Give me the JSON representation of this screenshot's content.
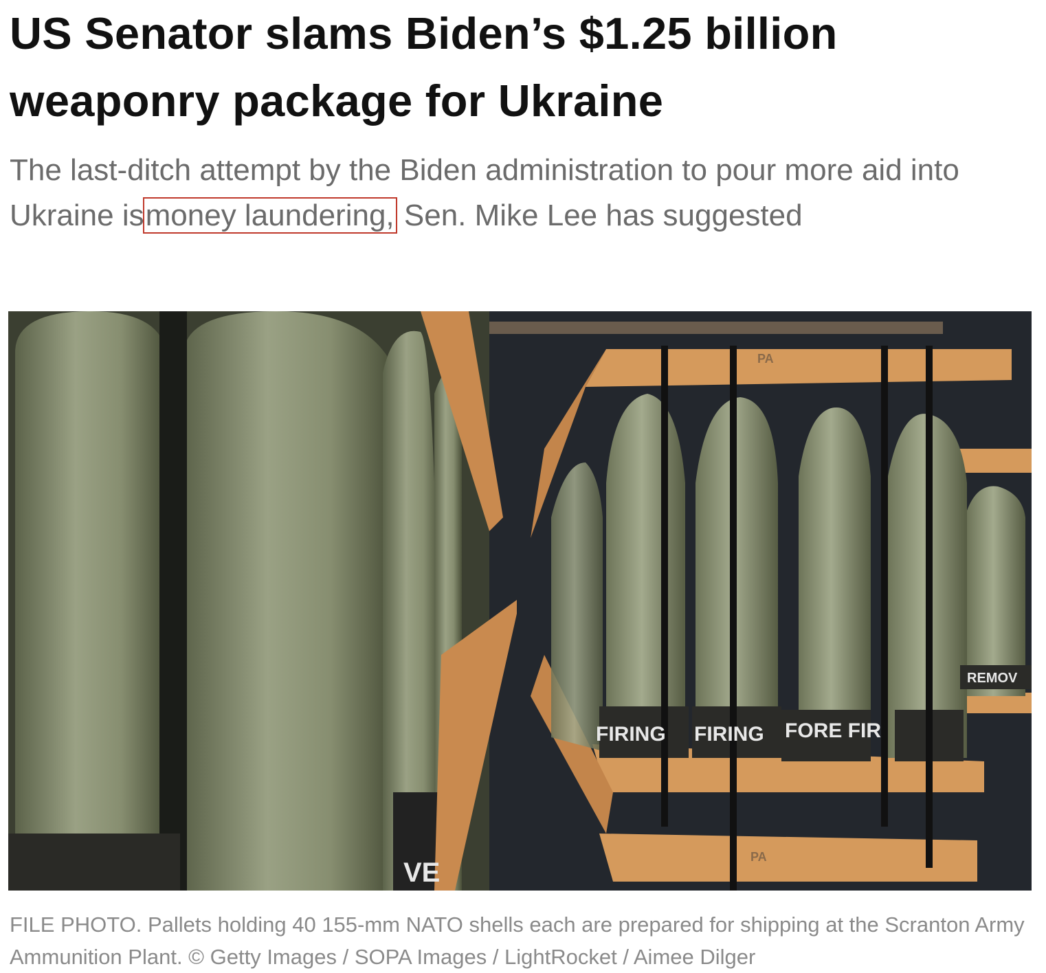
{
  "article": {
    "headline": "US Senator slams Biden’s $1.25 billion weaponry package for Ukraine",
    "subtitle_before": "The last-ditch attempt by the Biden administration to pour more aid into Ukraine is",
    "subtitle_highlight": "money laundering,",
    "subtitle_after": "Sen. Mike Lee has suggested",
    "highlight_color": "#c0392b",
    "photo": {
      "description_labels": [
        "PA",
        "FIRING",
        "FORE FIR",
        "REMOV",
        "VE"
      ],
      "caption": "FILE PHOTO. Pallets holding 40 155-mm NATO shells each are prepared for shipping at the Scranton Army Ammunition Plant. ©  Getty Images / SOPA Images / LightRocket / Aimee Dilger"
    }
  }
}
